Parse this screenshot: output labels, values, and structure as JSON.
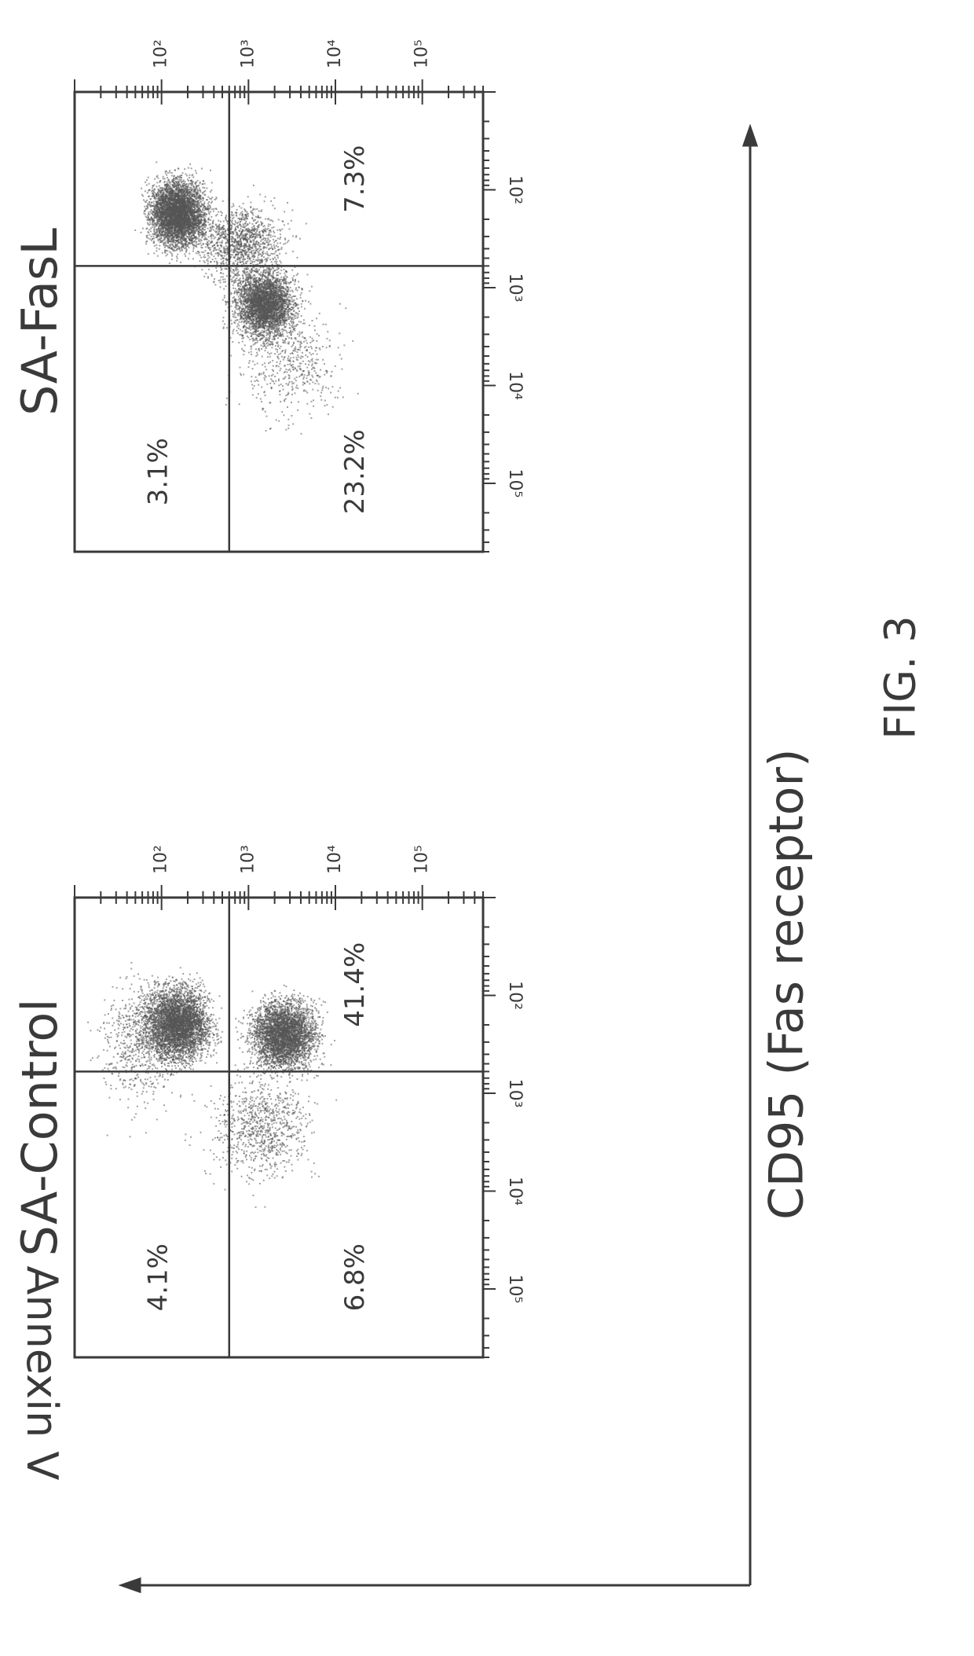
{
  "figure_label": "FIG. 3",
  "y_axis_label": "Annexin V",
  "x_axis_label": "CD95 (Fas receptor)",
  "ink_color": "#3a3a3a",
  "chart_data": [
    {
      "type": "scatter",
      "title": "SA-Control",
      "xlabel": "CD95 (Fas receptor)",
      "ylabel": "Annexin V",
      "x_scale": "log",
      "y_scale": "log",
      "xlim": [
        10,
        500000
      ],
      "ylim": [
        10,
        500000
      ],
      "x_ticks": [
        100,
        1000,
        10000,
        100000
      ],
      "x_tick_labels": [
        "10²",
        "10³",
        "10⁴",
        "10⁵"
      ],
      "y_ticks": [
        100,
        1000,
        10000,
        100000
      ],
      "y_tick_labels": [
        "10²",
        "10³",
        "10⁴",
        "10⁵"
      ],
      "gate": {
        "x": 600,
        "y": 600
      },
      "quadrants": {
        "upper_left": "4.1%",
        "upper_right": "6.8%",
        "lower_left": "",
        "lower_right": "41.4%"
      },
      "populations": [
        {
          "center": [
            150,
            200
          ],
          "spread": [
            0.35,
            0.35
          ],
          "count": 4200
        },
        {
          "center": [
            2500,
            260
          ],
          "spread": [
            0.35,
            0.33
          ],
          "count": 3800
        },
        {
          "center": [
            1400,
            2200
          ],
          "spread": [
            0.55,
            0.5
          ],
          "count": 900
        },
        {
          "center": [
            60,
            300
          ],
          "spread": [
            0.45,
            0.6
          ],
          "count": 700
        }
      ]
    },
    {
      "type": "scatter",
      "title": "SA-FasL",
      "xlabel": "CD95 (Fas receptor)",
      "ylabel": "Annexin V",
      "x_scale": "log",
      "y_scale": "log",
      "xlim": [
        10,
        500000
      ],
      "ylim": [
        10,
        500000
      ],
      "x_ticks": [
        100,
        1000,
        10000,
        100000
      ],
      "x_tick_labels": [
        "10²",
        "10³",
        "10⁴",
        "10⁵"
      ],
      "y_ticks": [
        100,
        1000,
        10000,
        100000
      ],
      "y_tick_labels": [
        "10²",
        "10³",
        "10⁴",
        "10⁵"
      ],
      "gate": {
        "x": 600,
        "y": 600
      },
      "quadrants": {
        "upper_left": "3.1%",
        "upper_right": "23.2%",
        "lower_left": "",
        "lower_right": "7.3%"
      },
      "populations": [
        {
          "center": [
            150,
            180
          ],
          "spread": [
            0.3,
            0.32
          ],
          "count": 4600
        },
        {
          "center": [
            1500,
            1500
          ],
          "spread": [
            0.33,
            0.33
          ],
          "count": 3600
        },
        {
          "center": [
            800,
            350
          ],
          "spread": [
            0.45,
            0.35
          ],
          "count": 1200
        },
        {
          "center": [
            3000,
            6000
          ],
          "spread": [
            0.55,
            0.5
          ],
          "count": 500
        }
      ]
    }
  ]
}
